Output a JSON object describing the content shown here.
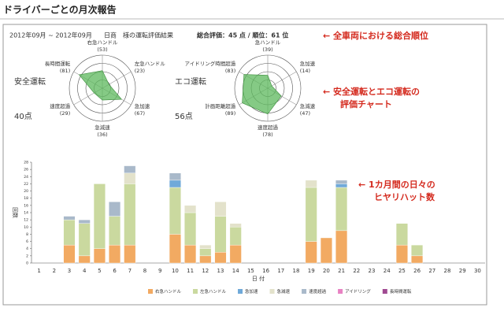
{
  "page_title": "ドライバーごとの月次報告",
  "header": {
    "period": "2012年09月 ~ 2012年09月",
    "customer": "日商　様の運転評価結果",
    "score": "総合評価：45 点 / 順位：61 位"
  },
  "annotations": [
    "← 全車両における総合順位",
    "← 安全運転とエコ運転の",
    "評価チャート",
    "← 1カ月間の日々の",
    "ヒヤリハット数"
  ],
  "chart_data": [
    {
      "type": "radar",
      "title": "安全運転",
      "score": "40点",
      "color": "#5cb85c",
      "categories": [
        "右急ハンドル",
        "左急ハンドル",
        "急加速",
        "急減速",
        "速度超過",
        "長時間運転"
      ],
      "values": [
        53,
        23,
        67,
        36,
        29,
        81
      ],
      "value_labels": [
        "(53)",
        "(23)",
        "(67)",
        "(36)",
        "(29)",
        "(81)"
      ],
      "ylim": [
        0,
        100
      ],
      "yticks": [
        25,
        50,
        75,
        100
      ]
    },
    {
      "type": "radar",
      "title": "エコ運転",
      "score": "56点",
      "color": "#5cb85c",
      "categories": [
        "急ハンドル",
        "急加速",
        "急減速",
        "速度超過",
        "計画距離超過",
        "アイドリング時間超過"
      ],
      "values": [
        39,
        14,
        47,
        78,
        89,
        83
      ],
      "value_labels": [
        "(39)",
        "(14)",
        "(47)",
        "(78)",
        "(89)",
        "(83)"
      ],
      "ylim": [
        0,
        100
      ],
      "yticks": [
        25,
        50,
        75,
        100
      ]
    },
    {
      "type": "stacked_bar",
      "y_label": "回数",
      "x_label": "日 付",
      "categories": [
        "1",
        "2",
        "3",
        "4",
        "5",
        "6",
        "7",
        "8",
        "9",
        "10",
        "11",
        "12",
        "13",
        "14",
        "15",
        "16",
        "17",
        "18",
        "19",
        "20",
        "21",
        "22",
        "23",
        "24",
        "25",
        "26",
        "27",
        "28",
        "29",
        "30"
      ],
      "series": [
        {
          "name": "右急ハンドル",
          "color": "#f2aa62",
          "values": [
            0,
            0,
            5,
            2,
            4,
            5,
            5,
            0,
            0,
            8,
            5,
            2,
            3,
            5,
            0,
            0,
            0,
            0,
            6,
            7,
            9,
            0,
            0,
            0,
            5,
            2,
            0,
            0,
            0,
            0
          ]
        },
        {
          "name": "左急ハンドル",
          "color": "#cad99f",
          "values": [
            0,
            0,
            7,
            9,
            18,
            8,
            17,
            0,
            0,
            13,
            9,
            2,
            10,
            5,
            0,
            0,
            0,
            0,
            15,
            0,
            12,
            0,
            0,
            0,
            6,
            3,
            0,
            0,
            0,
            0
          ]
        },
        {
          "name": "急加速",
          "color": "#6fa9d9",
          "values": [
            0,
            0,
            0,
            0,
            0,
            0,
            0,
            0,
            0,
            2,
            0,
            0,
            0,
            0,
            0,
            0,
            0,
            0,
            0,
            0,
            1,
            0,
            0,
            0,
            0,
            0,
            0,
            0,
            0,
            0
          ]
        },
        {
          "name": "急減速",
          "color": "#e3e2cb",
          "values": [
            0,
            0,
            0,
            0,
            0,
            0,
            3,
            0,
            0,
            0,
            2,
            1,
            4,
            1,
            0,
            0,
            0,
            0,
            2,
            0,
            0,
            0,
            0,
            0,
            0,
            0,
            0,
            0,
            0,
            0
          ]
        },
        {
          "name": "速度超過",
          "color": "#a9b9ca",
          "values": [
            0,
            0,
            1,
            1,
            0,
            4,
            2,
            0,
            0,
            2,
            0,
            0,
            0,
            0,
            0,
            0,
            0,
            0,
            0,
            0,
            1,
            0,
            0,
            0,
            0,
            0,
            0,
            0,
            0,
            0
          ]
        },
        {
          "name": "アイドリング",
          "color": "#e882c3",
          "values": [
            0,
            0,
            0,
            0,
            0,
            0,
            0,
            0,
            0,
            0,
            0,
            0,
            0,
            0,
            0,
            0,
            0,
            0,
            0,
            0,
            0,
            0,
            0,
            0,
            0,
            0,
            0,
            0,
            0,
            0
          ]
        },
        {
          "name": "長時間運転",
          "color": "#a04a92",
          "values": [
            0,
            0,
            0,
            0,
            0,
            0,
            0,
            0,
            0,
            0,
            0,
            0,
            0,
            0,
            0,
            0,
            0,
            0,
            0,
            0,
            0,
            0,
            0,
            0,
            0,
            0,
            0,
            0,
            0,
            0
          ]
        }
      ],
      "ylim": [
        0,
        28
      ],
      "yticks": [
        0,
        2,
        4,
        6,
        8,
        10,
        12,
        14,
        16,
        18,
        20,
        22,
        24,
        26,
        28
      ]
    }
  ]
}
